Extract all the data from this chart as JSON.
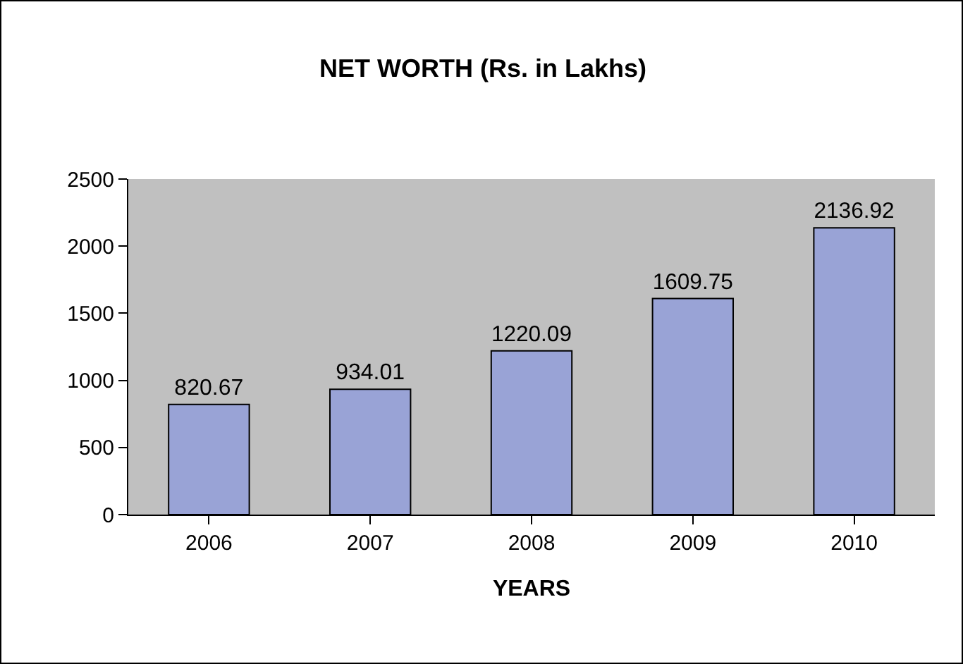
{
  "chart_data": {
    "type": "bar",
    "title": "NET WORTH (Rs. in Lakhs)",
    "xlabel": "YEARS",
    "categories": [
      "2006",
      "2007",
      "2008",
      "2009",
      "2010"
    ],
    "values": [
      820.67,
      934.01,
      1220.09,
      1609.75,
      2136.92
    ],
    "color": "#99a3d6",
    "ylim": [
      0,
      2500
    ],
    "yticks": [
      0,
      500,
      1000,
      1500,
      2000,
      2500
    ],
    "grid": false,
    "data_labels": true,
    "legend": false
  }
}
